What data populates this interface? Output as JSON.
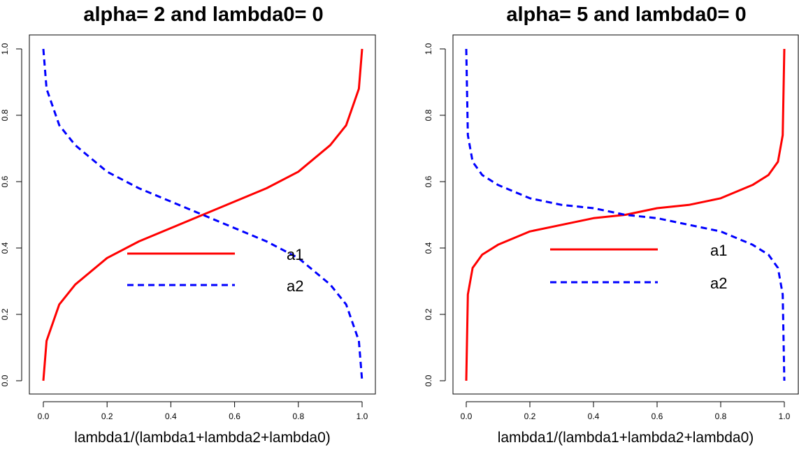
{
  "chart_data": [
    {
      "type": "line",
      "title": "alpha= 2  and  lambda0= 0",
      "xlabel": "lambda1/(lambda1+lambda2+lambda0)",
      "ylabel": "",
      "xlim": [
        0,
        1
      ],
      "ylim": [
        0,
        1
      ],
      "xticks": [
        "0.0",
        "0.2",
        "0.4",
        "0.6",
        "0.8",
        "1.0"
      ],
      "yticks": [
        "0.0",
        "0.2",
        "0.4",
        "0.6",
        "0.8",
        "1.0"
      ],
      "grid": false,
      "legend": "center-right",
      "series": [
        {
          "name": "a1",
          "color": "#ff0000",
          "dash": "solid",
          "x": [
            0.0,
            0.01,
            0.05,
            0.1,
            0.2,
            0.3,
            0.4,
            0.5,
            0.6,
            0.7,
            0.8,
            0.9,
            0.95,
            0.99,
            1.0
          ],
          "y": [
            0.0,
            0.12,
            0.23,
            0.29,
            0.37,
            0.42,
            0.46,
            0.5,
            0.54,
            0.58,
            0.63,
            0.71,
            0.77,
            0.88,
            1.0
          ]
        },
        {
          "name": "a2",
          "color": "#0000ff",
          "dash": "dashed",
          "x": [
            0.0,
            0.01,
            0.05,
            0.1,
            0.2,
            0.3,
            0.4,
            0.5,
            0.6,
            0.7,
            0.8,
            0.9,
            0.95,
            0.99,
            1.0
          ],
          "y": [
            1.0,
            0.88,
            0.77,
            0.71,
            0.63,
            0.58,
            0.54,
            0.5,
            0.46,
            0.42,
            0.37,
            0.29,
            0.23,
            0.12,
            0.0
          ]
        }
      ]
    },
    {
      "type": "line",
      "title": "alpha= 5  and  lambda0= 0",
      "xlabel": "lambda1/(lambda1+lambda2+lambda0)",
      "ylabel": "",
      "xlim": [
        0,
        1
      ],
      "ylim": [
        0,
        1
      ],
      "xticks": [
        "0.0",
        "0.2",
        "0.4",
        "0.6",
        "0.8",
        "1.0"
      ],
      "yticks": [
        "0.0",
        "0.2",
        "0.4",
        "0.6",
        "0.8",
        "1.0"
      ],
      "grid": false,
      "legend": "center-right",
      "series": [
        {
          "name": "a1",
          "color": "#ff0000",
          "dash": "solid",
          "x": [
            0.0,
            0.005,
            0.02,
            0.05,
            0.1,
            0.2,
            0.3,
            0.4,
            0.5,
            0.6,
            0.7,
            0.8,
            0.9,
            0.95,
            0.98,
            0.995,
            1.0
          ],
          "y": [
            0.0,
            0.26,
            0.34,
            0.38,
            0.41,
            0.45,
            0.47,
            0.49,
            0.5,
            0.52,
            0.53,
            0.55,
            0.59,
            0.62,
            0.66,
            0.74,
            1.0
          ]
        },
        {
          "name": "a2",
          "color": "#0000ff",
          "dash": "dashed",
          "x": [
            0.0,
            0.005,
            0.02,
            0.05,
            0.1,
            0.2,
            0.3,
            0.4,
            0.5,
            0.6,
            0.7,
            0.8,
            0.9,
            0.95,
            0.98,
            0.995,
            1.0
          ],
          "y": [
            1.0,
            0.74,
            0.66,
            0.62,
            0.59,
            0.55,
            0.53,
            0.52,
            0.5,
            0.49,
            0.47,
            0.45,
            0.41,
            0.38,
            0.34,
            0.26,
            0.0
          ]
        }
      ]
    }
  ]
}
